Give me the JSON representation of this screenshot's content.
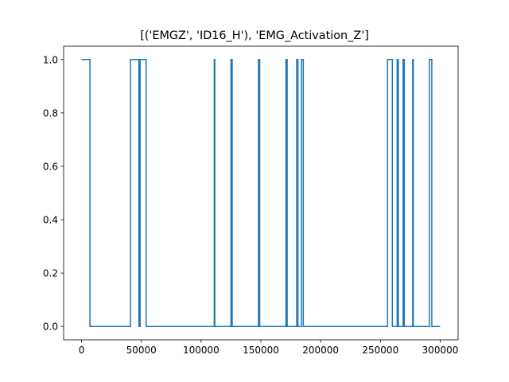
{
  "chart_data": {
    "type": "line",
    "title": "[('EMGZ', 'ID16_H'), 'EMG_Activation_Z']",
    "xlabel": "",
    "ylabel": "",
    "xlim": [
      -15000,
      315000
    ],
    "ylim": [
      -0.05,
      1.05
    ],
    "x_ticks": [
      0,
      50000,
      100000,
      150000,
      200000,
      250000,
      300000
    ],
    "x_tick_labels": [
      "0",
      "50000",
      "100000",
      "150000",
      "200000",
      "250000",
      "300000"
    ],
    "y_ticks": [
      0.0,
      0.2,
      0.4,
      0.6,
      0.8,
      1.0
    ],
    "y_tick_labels": [
      "0.0",
      "0.2",
      "0.4",
      "0.6",
      "0.8",
      "1.0"
    ],
    "grid": false,
    "series": [
      {
        "color": "#1f77b4",
        "step": true,
        "x": [
          0,
          7000,
          7000,
          41000,
          41000,
          48000,
          48000,
          49000,
          49000,
          54000,
          54000,
          111000,
          111000,
          111500,
          111500,
          125000,
          125000,
          126000,
          126000,
          148000,
          148000,
          149000,
          149000,
          171000,
          171000,
          172000,
          172000,
          180000,
          180000,
          181000,
          181000,
          184000,
          184000,
          185500,
          185500,
          256000,
          256000,
          260000,
          260000,
          264000,
          264000,
          265000,
          265000,
          269000,
          269000,
          270000,
          270000,
          277000,
          277000,
          277500,
          277500,
          291000,
          291000,
          293000,
          293000,
          300000
        ],
        "y": [
          1,
          1,
          0,
          0,
          1,
          1,
          0,
          0,
          1,
          1,
          0,
          0,
          1,
          1,
          0,
          0,
          1,
          1,
          0,
          0,
          1,
          1,
          0,
          0,
          1,
          1,
          0,
          0,
          1,
          1,
          0,
          0,
          1,
          1,
          0,
          0,
          1,
          1,
          0,
          0,
          1,
          1,
          0,
          0,
          1,
          1,
          0,
          0,
          1,
          1,
          0,
          0,
          1,
          1,
          0,
          0
        ]
      }
    ]
  }
}
